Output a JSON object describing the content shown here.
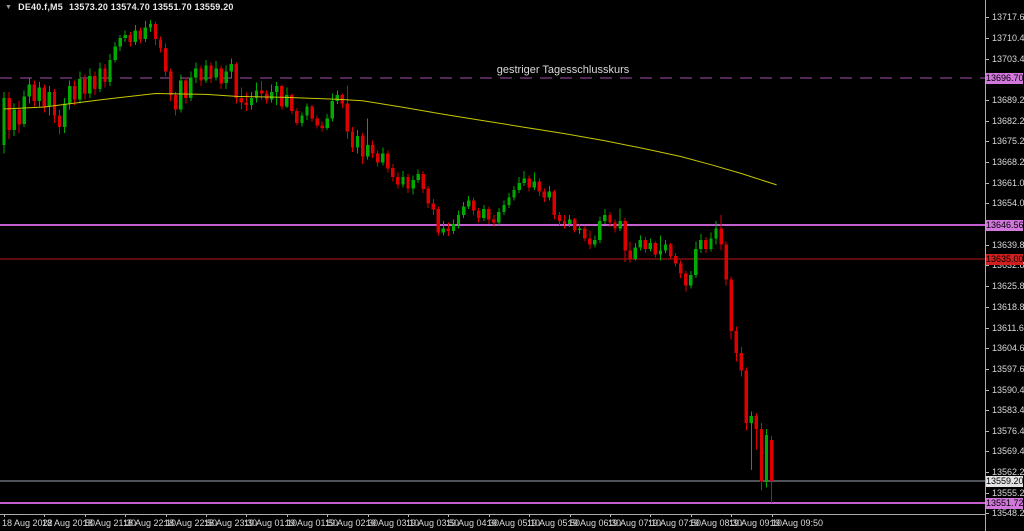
{
  "window": {
    "menu_icon": "▼",
    "symbol_period": "DE40.f,M5",
    "ohlc_text": "13573.20 13574.70 13551.70 13559.20"
  },
  "colors": {
    "background": "#000000",
    "bull": "#00AA00",
    "bear": "#DC0000",
    "ma": "#C8C800",
    "axis_text": "#D8D8D8",
    "axis_line": "#ABABAB"
  },
  "chart_data": {
    "type": "candlestick",
    "symbol": "DE40.f",
    "timeframe": "M5",
    "title": "DE40.f,M5 13573.20 13574.70 13551.70 13559.20",
    "current_bar": {
      "open": 13573.2,
      "high": 13574.7,
      "low": 13551.7,
      "close": 13559.2
    },
    "y_range": [
      13548.0,
      13723.4
    ],
    "grid": "off",
    "y_ticks": [
      "13717.60",
      "13710.40",
      "13703.40",
      "13689.20",
      "13682.20",
      "13675.20",
      "13668.20",
      "13661.00",
      "13654.00",
      "13639.80",
      "13632.80",
      "13625.80",
      "13618.80",
      "13611.60",
      "13604.60",
      "13597.60",
      "13590.40",
      "13583.40",
      "13576.40",
      "13569.40",
      "13562.20",
      "13555.20",
      "13548.20"
    ],
    "x_labels": [
      "18 Aug 2022",
      "18 Aug 20:50",
      "18 Aug 21:30",
      "18 Aug 22:10",
      "18 Aug 22:50",
      "18 Aug 23:30",
      "19 Aug 01:10",
      "19 Aug 01:50",
      "19 Aug 02:30",
      "19 Aug 03:10",
      "19 Aug 03:50",
      "19 Aug 04:30",
      "19 Aug 05:10",
      "19 Aug 05:50",
      "19 Aug 06:30",
      "19 Aug 07:10",
      "19 Aug 07:50",
      "19 Aug 08:30",
      "19 Aug 09:10",
      "19 Aug 09:50"
    ],
    "levels": [
      {
        "kind": "previous-close",
        "value": 13696.7,
        "label": "13696.70",
        "style": "dashed",
        "width": 1,
        "color": "#A44FAE",
        "label_bg": "#D277DC",
        "label_fg": "#000000",
        "caption": "gestriger Tagesschlusskurs"
      },
      {
        "kind": "horizontal-line",
        "value": 13646.56,
        "label": "13646.56",
        "style": "solid",
        "width": 2,
        "color": "#C45FD0",
        "label_bg": "#D277DC",
        "label_fg": "#000000"
      },
      {
        "kind": "alert-line",
        "value": 13635.0,
        "label": "13635.00",
        "style": "solid",
        "width": 1,
        "color": "#C01818",
        "label_bg": "#D02020",
        "label_fg": "#000000"
      },
      {
        "kind": "bid-price",
        "value": 13559.2,
        "label": "13559.20",
        "style": "solid",
        "width": 1,
        "color": "#9AA6B2",
        "label_bg": "#E4E4E4",
        "label_fg": "#000000"
      },
      {
        "kind": "horizontal-line",
        "value": 13551.72,
        "label": "13551.72",
        "style": "solid",
        "width": 2,
        "color": "#C45FD0",
        "label_bg": "#D277DC",
        "label_fg": "#000000"
      }
    ],
    "ma": {
      "name": "moving-average",
      "points": [
        [
          0,
          13686.2
        ],
        [
          8,
          13686.9
        ],
        [
          19,
          13689.3
        ],
        [
          30,
          13691.5
        ],
        [
          40,
          13691.2
        ],
        [
          46,
          13690.5
        ],
        [
          55,
          13690.2
        ],
        [
          66,
          13689.5
        ],
        [
          71,
          13689.0
        ],
        [
          79,
          13686.8
        ],
        [
          87,
          13684.4
        ],
        [
          95,
          13682.2
        ],
        [
          103,
          13680.0
        ],
        [
          111,
          13677.8
        ],
        [
          119,
          13675.4
        ],
        [
          127,
          13672.6
        ],
        [
          134,
          13670.0
        ],
        [
          140,
          13667.2
        ],
        [
          146,
          13664.2
        ],
        [
          153,
          13660.3
        ]
      ]
    },
    "candles": [
      [
        13674,
        13692,
        13671,
        13690
      ],
      [
        13690,
        13692,
        13676,
        13679
      ],
      [
        13679,
        13688,
        13677,
        13686
      ],
      [
        13686,
        13689,
        13678,
        13681
      ],
      [
        13681,
        13692.5,
        13680,
        13690.5
      ],
      [
        13690.5,
        13697,
        13688,
        13694.5
      ],
      [
        13694.5,
        13696,
        13687,
        13689
      ],
      [
        13689,
        13695.5,
        13687,
        13693.5
      ],
      [
        13693.5,
        13694.5,
        13685,
        13687
      ],
      [
        13687,
        13694,
        13684,
        13692
      ],
      [
        13692,
        13693,
        13681.5,
        13684
      ],
      [
        13684,
        13686,
        13677.5,
        13680
      ],
      [
        13680,
        13690,
        13678,
        13688
      ],
      [
        13688,
        13696,
        13686,
        13694
      ],
      [
        13694,
        13696,
        13687.5,
        13689.5
      ],
      [
        13689.5,
        13699,
        13688,
        13696.5
      ],
      [
        13696.5,
        13698,
        13689.5,
        13691.5
      ],
      [
        13691.5,
        13700,
        13690,
        13697.5
      ],
      [
        13697.5,
        13699,
        13691,
        13693
      ],
      [
        13693,
        13702,
        13692,
        13700
      ],
      [
        13700,
        13701.5,
        13693.5,
        13695.5
      ],
      [
        13695.5,
        13705,
        13694,
        13703
      ],
      [
        13703,
        13709,
        13702,
        13707.5
      ],
      [
        13707.5,
        13711.5,
        13706,
        13710.5
      ],
      [
        13710.5,
        13713,
        13709,
        13711.5
      ],
      [
        13711.5,
        13712.5,
        13707.5,
        13709
      ],
      [
        13709,
        13714.8,
        13708,
        13713
      ],
      [
        13713,
        13714,
        13708.5,
        13710
      ],
      [
        13710,
        13716.3,
        13709,
        13714
      ],
      [
        13714,
        13716.5,
        13712.5,
        13715.2
      ],
      [
        13715.2,
        13716,
        13708,
        13710
      ],
      [
        13710,
        13711,
        13705.5,
        13707
      ],
      [
        13707,
        13708.5,
        13697.5,
        13699
      ],
      [
        13699,
        13700,
        13689,
        13691
      ],
      [
        13691,
        13692,
        13684,
        13686
      ],
      [
        13686,
        13698,
        13685,
        13696
      ],
      [
        13696,
        13697,
        13688,
        13690
      ],
      [
        13690,
        13699,
        13689,
        13697
      ],
      [
        13697,
        13702,
        13695,
        13700
      ],
      [
        13700,
        13701,
        13694,
        13696
      ],
      [
        13696,
        13703,
        13695,
        13701
      ],
      [
        13701,
        13702,
        13695,
        13697
      ],
      [
        13697,
        13702.5,
        13696,
        13700
      ],
      [
        13700,
        13701,
        13693,
        13695
      ],
      [
        13695,
        13701,
        13693,
        13699
      ],
      [
        13699,
        13703.5,
        13697,
        13701.5
      ],
      [
        13701.5,
        13702,
        13688,
        13690
      ],
      [
        13690,
        13693.5,
        13686,
        13688.5
      ],
      [
        13688.5,
        13691.9,
        13685.5,
        13687.5
      ],
      [
        13687.5,
        13692,
        13686,
        13690
      ],
      [
        13690,
        13695.2,
        13688.5,
        13692.5
      ],
      [
        13692.5,
        13695.8,
        13689.5,
        13691.5
      ],
      [
        13691.5,
        13692.5,
        13688,
        13689.5
      ],
      [
        13689.5,
        13694.5,
        13688.5,
        13692
      ],
      [
        13692,
        13695.5,
        13687.5,
        13694
      ],
      [
        13694,
        13694.5,
        13686,
        13687
      ],
      [
        13687,
        13693.5,
        13686.5,
        13691
      ],
      [
        13691,
        13691.5,
        13684.5,
        13685.5
      ],
      [
        13685.5,
        13686.5,
        13680.5,
        13681.5
      ],
      [
        13681.5,
        13685,
        13680.2,
        13684
      ],
      [
        13684,
        13688,
        13682.5,
        13687
      ],
      [
        13687,
        13687.5,
        13682,
        13683
      ],
      [
        13683,
        13684,
        13679.5,
        13680.5
      ],
      [
        13680.5,
        13682,
        13678.5,
        13679.8
      ],
      [
        13679.8,
        13684.5,
        13679,
        13683
      ],
      [
        13683,
        13691.5,
        13682,
        13689
      ],
      [
        13689,
        13692.5,
        13687.9,
        13690.9
      ],
      [
        13690.9,
        13691.5,
        13686.5,
        13688
      ],
      [
        13688,
        13694.2,
        13676,
        13678.5
      ],
      [
        13678.5,
        13680,
        13671.5,
        13673
      ],
      [
        13673,
        13679,
        13671,
        13677
      ],
      [
        13677,
        13678,
        13667.5,
        13670
      ],
      [
        13670,
        13683,
        13669,
        13674
      ],
      [
        13674,
        13675.5,
        13669.5,
        13671
      ],
      [
        13671,
        13672,
        13666.5,
        13668
      ],
      [
        13668,
        13673,
        13667,
        13671
      ],
      [
        13671,
        13672,
        13664.5,
        13666
      ],
      [
        13666,
        13667.5,
        13661.5,
        13663
      ],
      [
        13663,
        13664.5,
        13659,
        13660.5
      ],
      [
        13660.5,
        13665,
        13659.5,
        13663
      ],
      [
        13663,
        13664,
        13657.5,
        13659
      ],
      [
        13659,
        13663.5,
        13657,
        13662
      ],
      [
        13662,
        13665.5,
        13661,
        13664
      ],
      [
        13664,
        13665,
        13657.5,
        13659
      ],
      [
        13659,
        13660,
        13652.5,
        13654
      ],
      [
        13654,
        13655.5,
        13650,
        13652
      ],
      [
        13652,
        13653,
        13643,
        13644
      ],
      [
        13644,
        13648,
        13643,
        13645.5
      ],
      [
        13645.5,
        13647.5,
        13642.8,
        13644.5
      ],
      [
        13644.5,
        13648.5,
        13643.5,
        13647
      ],
      [
        13647,
        13651.5,
        13645.5,
        13650
      ],
      [
        13650,
        13654.5,
        13649,
        13653
      ],
      [
        13653,
        13656.5,
        13652,
        13655
      ],
      [
        13655,
        13656,
        13650,
        13651.5
      ],
      [
        13651.5,
        13652.5,
        13647.5,
        13649
      ],
      [
        13649,
        13653.5,
        13648,
        13652
      ],
      [
        13652,
        13653,
        13647,
        13648.5
      ],
      [
        13648.5,
        13650,
        13646,
        13647.5
      ],
      [
        13647.5,
        13652.5,
        13646.5,
        13651
      ],
      [
        13651,
        13655,
        13650,
        13653.5
      ],
      [
        13653.5,
        13657.5,
        13652.5,
        13656
      ],
      [
        13656,
        13660,
        13655,
        13658.5
      ],
      [
        13658.5,
        13663,
        13657.5,
        13661
      ],
      [
        13661,
        13665,
        13660,
        13662.5
      ],
      [
        13662.5,
        13663.5,
        13658,
        13659.5
      ],
      [
        13659.5,
        13664.5,
        13658.5,
        13661.5
      ],
      [
        13661.5,
        13662.5,
        13656.5,
        13658
      ],
      [
        13658,
        13659,
        13654.5,
        13656
      ],
      [
        13656,
        13660,
        13655,
        13658
      ],
      [
        13658,
        13658.5,
        13648.5,
        13650
      ],
      [
        13650,
        13651,
        13646.5,
        13648
      ],
      [
        13648,
        13650,
        13645.5,
        13647
      ],
      [
        13647,
        13650,
        13646,
        13648.5
      ],
      [
        13648.5,
        13649,
        13644,
        13645
      ],
      [
        13645,
        13647,
        13643.5,
        13645.5
      ],
      [
        13645.5,
        13646.5,
        13641,
        13642
      ],
      [
        13642,
        13644.5,
        13638.5,
        13640
      ],
      [
        13640,
        13643,
        13639,
        13641.5
      ],
      [
        13641.5,
        13649.5,
        13640.5,
        13648
      ],
      [
        13648,
        13652,
        13647,
        13650
      ],
      [
        13650,
        13651,
        13646,
        13647.5
      ],
      [
        13647.5,
        13648.5,
        13644,
        13645.5
      ],
      [
        13645.5,
        13652.2,
        13644.5,
        13648
      ],
      [
        13648,
        13649,
        13634,
        13638
      ],
      [
        13638,
        13641,
        13633.9,
        13635
      ],
      [
        13635,
        13640.5,
        13634.5,
        13639
      ],
      [
        13639,
        13643,
        13638,
        13641.5
      ],
      [
        13641.5,
        13642.5,
        13637,
        13638.5
      ],
      [
        13638.5,
        13642,
        13637.5,
        13640.5
      ],
      [
        13640.5,
        13641,
        13635.5,
        13636.5
      ],
      [
        13636.5,
        13643,
        13634.5,
        13638
      ],
      [
        13638,
        13641.5,
        13637,
        13640
      ],
      [
        13640,
        13640.5,
        13635,
        13636
      ],
      [
        13636,
        13637,
        13632.5,
        13633.5
      ],
      [
        13633.5,
        13634.5,
        13628.5,
        13630
      ],
      [
        13630,
        13631,
        13624,
        13626
      ],
      [
        13626,
        13631,
        13625,
        13629.5
      ],
      [
        13629.5,
        13641,
        13628.5,
        13638.5
      ],
      [
        13638.5,
        13643.5,
        13637,
        13641.5
      ],
      [
        13641.5,
        13642.5,
        13637,
        13638.5
      ],
      [
        13638.5,
        13644,
        13637.5,
        13642
      ],
      [
        13642,
        13648,
        13640,
        13645.5
      ],
      [
        13645.5,
        13650,
        13638,
        13640
      ],
      [
        13640,
        13641,
        13626,
        13628
      ],
      [
        13628,
        13629,
        13607.5,
        13610.5
      ],
      [
        13610.5,
        13612,
        13600,
        13603
      ],
      [
        13603,
        13605,
        13595,
        13597
      ],
      [
        13597,
        13598,
        13576.5,
        13579
      ],
      [
        13579,
        13583,
        13563,
        13581.5
      ],
      [
        13581.5,
        13582.5,
        13570,
        13577
      ],
      [
        13577,
        13579,
        13556,
        13559
      ],
      [
        13559,
        13577,
        13557,
        13575
      ],
      [
        13573.2,
        13574.7,
        13551.7,
        13559.2
      ]
    ]
  }
}
